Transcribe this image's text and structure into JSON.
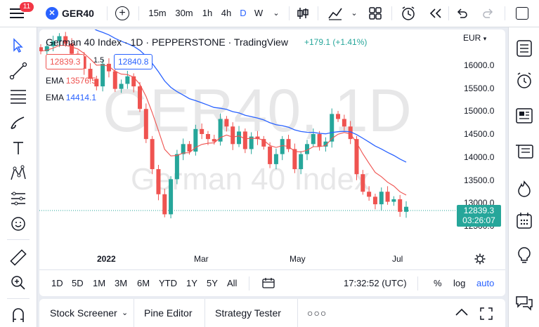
{
  "topbar": {
    "notification_count": "11",
    "symbol": "GER40",
    "intervals": [
      "15m",
      "30m",
      "1h",
      "4h",
      "D",
      "W"
    ],
    "active_interval": "D"
  },
  "legend": {
    "title": "German 40 Index · 1D · PEPPERSTONE · TradingView",
    "change": "+179.1 (+1.41%)",
    "bid": "12839.3",
    "spread": "1.5",
    "ask": "12840.8",
    "ema1_label": "EMA",
    "ema1_value": "13576.5",
    "ema2_label": "EMA",
    "ema2_value": "14414.1"
  },
  "currency": "EUR",
  "watermark": {
    "big": "GER40, 1D",
    "small": "German 40 Index"
  },
  "price_axis": [
    "16000.0",
    "15500.0",
    "15000.0",
    "14500.0",
    "14000.0",
    "13500.0",
    "13000.0",
    "12500.0"
  ],
  "current_price": {
    "value": "12839.3",
    "countdown": "03:26:07"
  },
  "time_axis": [
    "2022",
    "Mar",
    "May",
    "Jul"
  ],
  "periods": [
    "1D",
    "5D",
    "1M",
    "3M",
    "6M",
    "YTD",
    "1Y",
    "5Y",
    "All"
  ],
  "clock": "17:32:52 (UTC)",
  "scale_options": [
    "%",
    "log",
    "auto"
  ],
  "bottom_tabs": [
    "Stock Screener",
    "Pine Editor",
    "Strategy Tester"
  ],
  "colors": {
    "up": "#26a69a",
    "down": "#ef5350",
    "ema_fast": "#ef5350",
    "ema_slow": "#2962ff",
    "accent": "#2962ff"
  },
  "chart_data": {
    "type": "candlestick",
    "ylim": [
      12300,
      16300
    ],
    "overlays": [
      "EMA 50",
      "EMA 200"
    ],
    "closes": [
      15950,
      16050,
      16150,
      16250,
      16100,
      15900,
      15850,
      15600,
      15400,
      15250,
      15700,
      15550,
      15200,
      15300,
      15450,
      15250,
      14800,
      14200,
      13600,
      13100,
      12700,
      13400,
      13900,
      14100,
      13950,
      14400,
      14300,
      14200,
      14150,
      14600,
      14450,
      14100,
      14350,
      14000,
      14250,
      14200,
      14050,
      13700,
      13900,
      14200,
      14000,
      13600,
      13900,
      14100,
      14300,
      14050,
      14150,
      14700,
      14600,
      14450,
      14200,
      13500,
      13150,
      13050,
      12900,
      13150,
      12950,
      13000,
      12750,
      12850
    ]
  }
}
